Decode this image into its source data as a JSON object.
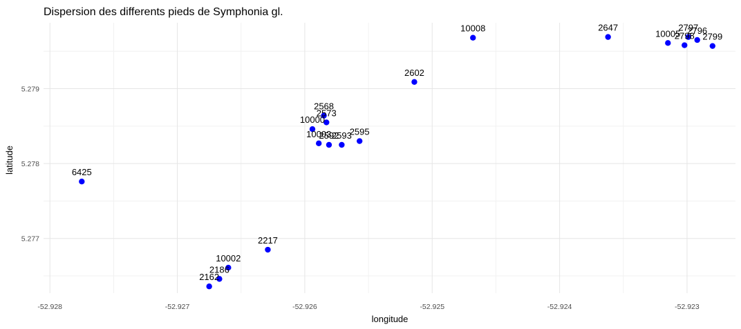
{
  "chart_data": {
    "type": "scatter",
    "title": "Dispersion des differents pieds de Symphonia gl.",
    "xlabel": "longitude",
    "ylabel": "latitude",
    "xlim": [
      -52.92805,
      -52.92262
    ],
    "ylim": [
      5.27627,
      5.27988
    ],
    "x_ticks": [
      -52.928,
      -52.927,
      -52.926,
      -52.925,
      -52.924,
      -52.923
    ],
    "x_tick_labels": [
      "-52.928",
      "-52.927",
      "-52.926",
      "-52.925",
      "-52.924",
      "-52.923"
    ],
    "y_ticks": [
      5.277,
      5.278,
      5.279
    ],
    "y_tick_labels": [
      "5.277",
      "5.278",
      "5.279"
    ],
    "grid": true,
    "point_color": "#0000ff",
    "points": [
      {
        "label": "6425",
        "x": -52.92775,
        "y": 5.27776
      },
      {
        "label": "2162",
        "x": -52.92675,
        "y": 5.27636
      },
      {
        "label": "2186",
        "x": -52.92667,
        "y": 5.27646
      },
      {
        "label": "10002",
        "x": -52.9266,
        "y": 5.27661
      },
      {
        "label": "2217",
        "x": -52.92629,
        "y": 5.27685
      },
      {
        "label": "10000",
        "x": -52.92594,
        "y": 5.27846
      },
      {
        "label": "10003",
        "x": -52.92589,
        "y": 5.27827
      },
      {
        "label": "2568",
        "x": -52.92585,
        "y": 5.27864
      },
      {
        "label": "2573",
        "x": -52.92583,
        "y": 5.27855
      },
      {
        "label": "2592",
        "x": -52.92581,
        "y": 5.27825
      },
      {
        "label": "2593",
        "x": -52.92571,
        "y": 5.27825
      },
      {
        "label": "2595",
        "x": -52.92557,
        "y": 5.2783
      },
      {
        "label": "2602",
        "x": -52.92514,
        "y": 5.27909
      },
      {
        "label": "10008",
        "x": -52.92468,
        "y": 5.27968
      },
      {
        "label": "2647",
        "x": -52.92362,
        "y": 5.27969
      },
      {
        "label": "10005",
        "x": -52.92315,
        "y": 5.27961
      },
      {
        "label": "2798",
        "x": -52.92302,
        "y": 5.27958
      },
      {
        "label": "2797",
        "x": -52.92299,
        "y": 5.27969
      },
      {
        "label": "2796",
        "x": -52.92292,
        "y": 5.27965
      },
      {
        "label": "2799",
        "x": -52.9228,
        "y": 5.27957
      }
    ]
  }
}
